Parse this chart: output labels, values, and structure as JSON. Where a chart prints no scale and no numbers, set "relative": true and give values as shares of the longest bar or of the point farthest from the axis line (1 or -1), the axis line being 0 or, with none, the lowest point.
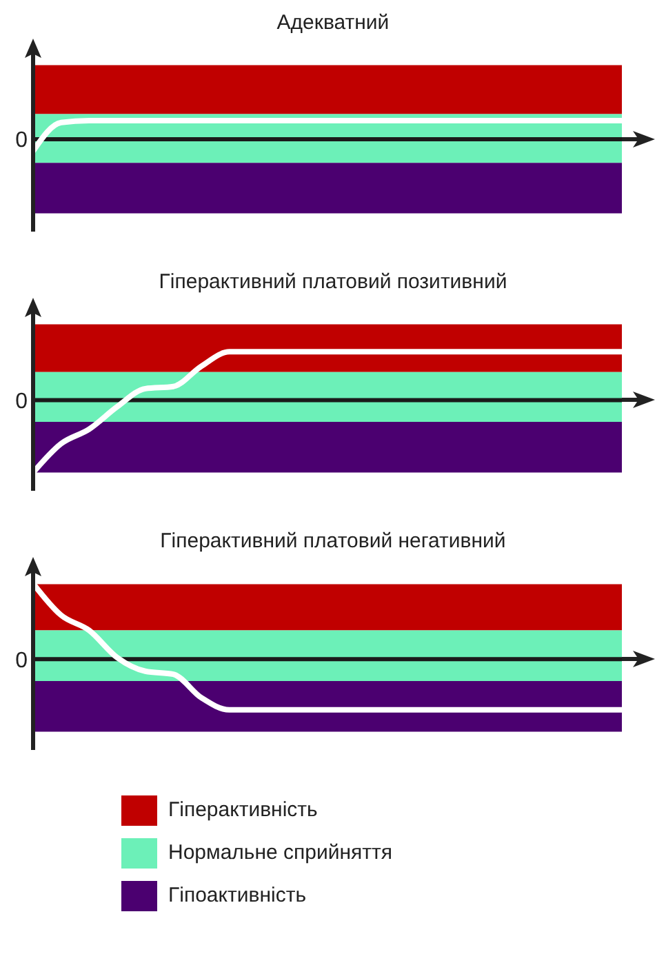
{
  "chart_data": [
    {
      "type": "line",
      "title": "Адекватний",
      "relative": true,
      "categories": [
        null,
        null,
        null,
        null,
        null,
        null,
        null,
        null,
        null,
        null,
        null,
        null,
        null,
        null,
        null,
        null,
        null,
        null,
        null,
        null,
        null,
        null
      ],
      "series": [
        {
          "color": "#ffffff",
          "values": [
            -0.64,
            0.9,
            1,
            1,
            1,
            1,
            1,
            1,
            1,
            1,
            1,
            1,
            1,
            1,
            1,
            1,
            1,
            1,
            1,
            1,
            1,
            1
          ]
        }
      ],
      "bands": [
        {
          "axis": "y",
          "from": 1.36,
          "to": 4.0,
          "color": "#c00000"
        },
        {
          "axis": "y",
          "from": -1.27,
          "to": 1.36,
          "color": "#6cf0b8"
        },
        {
          "axis": "y",
          "from": -4.0,
          "to": -1.27,
          "color": "#4b0070"
        }
      ],
      "ref_lines": [
        {
          "axis": "y",
          "value": 0,
          "label": "0"
        }
      ]
    },
    {
      "type": "line",
      "title": "Гіперактивний платовий позитивний",
      "relative": true,
      "categories": [
        null,
        null,
        null,
        null,
        null,
        null,
        null,
        null,
        null,
        null,
        null,
        null,
        null,
        null,
        null,
        null,
        null,
        null,
        null,
        null,
        null,
        null
      ],
      "series": [
        {
          "color": "#ffffff",
          "values": [
            -1,
            -0.6,
            -0.4,
            -0.09,
            0.16,
            0.19,
            0.47,
            0.67,
            0.67,
            0.67,
            0.67,
            0.67,
            0.67,
            0.67,
            0.67,
            0.67,
            0.67,
            0.67,
            0.67,
            0.67,
            0.67,
            0.67
          ]
        }
      ],
      "bands": [
        {
          "axis": "y",
          "from": 0.39,
          "to": 1.05,
          "color": "#c00000"
        },
        {
          "axis": "y",
          "from": -0.3,
          "to": 0.39,
          "color": "#6cf0b8"
        },
        {
          "axis": "y",
          "from": -1.0,
          "to": -0.3,
          "color": "#4b0070"
        }
      ],
      "ref_lines": [
        {
          "axis": "y",
          "value": 0,
          "label": "0"
        }
      ]
    },
    {
      "type": "line",
      "title": "Гіперактивний платовий негативний",
      "relative": true,
      "legend": "bottom",
      "categories": [
        null,
        null,
        null,
        null,
        null,
        null,
        null,
        null,
        null,
        null,
        null,
        null,
        null,
        null,
        null,
        null,
        null,
        null,
        null,
        null,
        null,
        null
      ],
      "series": [
        {
          "color": "#ffffff",
          "values": [
            1,
            0.58,
            0.38,
            0.02,
            -0.16,
            -0.2,
            -0.51,
            -0.67,
            -0.67,
            -0.67,
            -0.67,
            -0.67,
            -0.67,
            -0.67,
            -0.67,
            -0.67,
            -0.67,
            -0.67,
            -0.67,
            -0.67,
            -0.67,
            -0.67
          ]
        }
      ],
      "bands": [
        {
          "axis": "y",
          "from": 0.38,
          "to": 0.99,
          "color": "#c00000",
          "label": "Гіперактивність"
        },
        {
          "axis": "y",
          "from": -0.29,
          "to": 0.38,
          "color": "#6cf0b8",
          "label": "Нормальне сприйняття"
        },
        {
          "axis": "y",
          "from": -0.96,
          "to": -0.29,
          "color": "#4b0070",
          "label": "Гіпоактивність"
        }
      ],
      "ref_lines": [
        {
          "axis": "y",
          "value": 0,
          "label": "0"
        }
      ]
    }
  ]
}
